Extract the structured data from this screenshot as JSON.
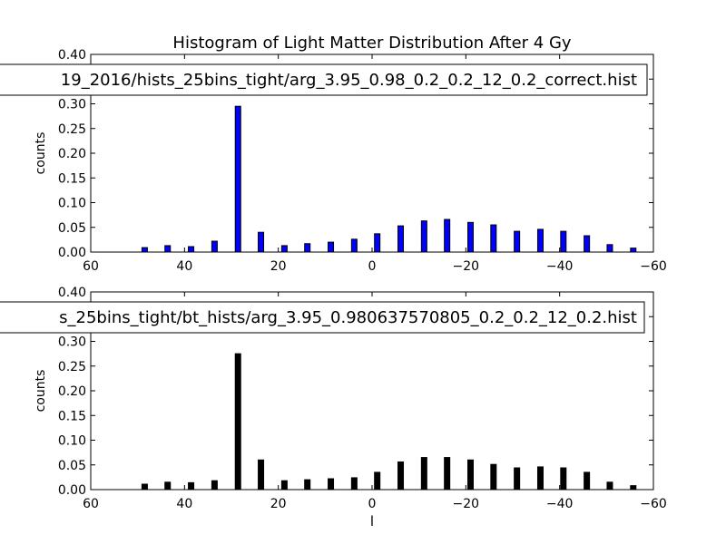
{
  "figure": {
    "title": "Histogram of Light Matter Distribution After 4 Gy"
  },
  "chart_data": [
    {
      "type": "bar",
      "legend_label": "19_2016/hists_25bins_tight/arg_3.95_0.98_0.2_0.2_12_0.2_correct.hist",
      "legend_position": "top",
      "ylabel": "counts",
      "xlabel": "",
      "xlim": [
        60,
        -60
      ],
      "ylim": [
        0,
        0.4
      ],
      "xticks": [
        60,
        40,
        20,
        0,
        -20,
        -40,
        -60
      ],
      "xtick_labels": [
        "60",
        "40",
        "20",
        "0",
        "−20",
        "−40",
        "−60"
      ],
      "yticks": [
        0.0,
        0.05,
        0.1,
        0.15,
        0.2,
        0.25,
        0.3,
        0.35,
        0.4
      ],
      "ytick_labels": [
        "0.00",
        "0.05",
        "0.10",
        "0.15",
        "0.20",
        "0.25",
        "0.30",
        "0.35",
        "0.40"
      ],
      "bar_color": "#0000ff",
      "x": [
        48.5,
        43.6,
        38.6,
        33.6,
        28.6,
        23.7,
        18.7,
        13.8,
        8.8,
        3.8,
        -1.1,
        -6.1,
        -11.1,
        -16.0,
        -21.0,
        -25.9,
        -30.9,
        -35.9,
        -40.8,
        -45.8,
        -50.7,
        -55.7
      ],
      "values": [
        0.009,
        0.013,
        0.011,
        0.022,
        0.295,
        0.04,
        0.013,
        0.017,
        0.02,
        0.026,
        0.037,
        0.053,
        0.063,
        0.066,
        0.06,
        0.055,
        0.042,
        0.046,
        0.042,
        0.033,
        0.015,
        0.008
      ]
    },
    {
      "type": "bar",
      "legend_label": "s_25bins_tight/bt_hists/arg_3.95_0.980637570805_0.2_0.2_12_0.2.hist",
      "legend_position": "top",
      "ylabel": "counts",
      "xlabel": "l",
      "xlim": [
        60,
        -60
      ],
      "ylim": [
        0,
        0.4
      ],
      "xticks": [
        60,
        40,
        20,
        0,
        -20,
        -40,
        -60
      ],
      "xtick_labels": [
        "60",
        "40",
        "20",
        "0",
        "−20",
        "−40",
        "−60"
      ],
      "yticks": [
        0.0,
        0.05,
        0.1,
        0.15,
        0.2,
        0.25,
        0.3,
        0.35,
        0.4
      ],
      "ytick_labels": [
        "0.00",
        "0.05",
        "0.10",
        "0.15",
        "0.20",
        "0.25",
        "0.30",
        "0.35",
        "0.40"
      ],
      "bar_color": "#000000",
      "x": [
        48.5,
        43.6,
        38.6,
        33.6,
        28.6,
        23.7,
        18.7,
        13.8,
        8.8,
        3.8,
        -1.1,
        -6.1,
        -11.1,
        -16.0,
        -21.0,
        -25.9,
        -30.9,
        -35.9,
        -40.8,
        -45.8,
        -50.7,
        -55.7
      ],
      "values": [
        0.011,
        0.015,
        0.014,
        0.018,
        0.275,
        0.06,
        0.018,
        0.02,
        0.022,
        0.024,
        0.035,
        0.056,
        0.065,
        0.065,
        0.06,
        0.051,
        0.044,
        0.046,
        0.044,
        0.035,
        0.015,
        0.008
      ]
    }
  ]
}
